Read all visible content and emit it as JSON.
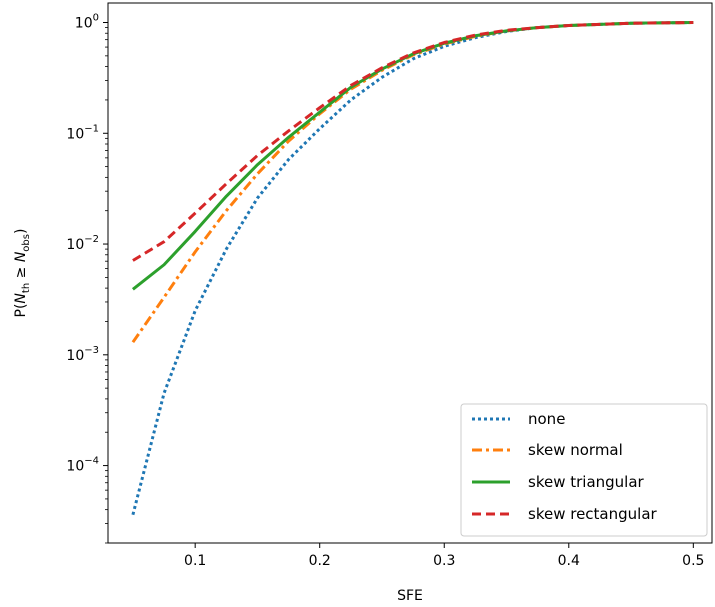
{
  "chart_data": {
    "type": "line",
    "xlabel": "SFE",
    "ylabel_prefix": "P(",
    "ylabel_n1": "N",
    "ylabel_s1": "th",
    "ylabel_ge": " ≥ ",
    "ylabel_n2": "N",
    "ylabel_s2": "obs",
    "ylabel_suffix": ")",
    "y_scale": "log",
    "xlim": [
      0.03,
      0.515
    ],
    "ylim": [
      2e-05,
      1.5
    ],
    "grid": false,
    "legend_position": "lower-right",
    "x_ticks": [
      "0.1",
      "0.2",
      "0.3",
      "0.4",
      "0.5"
    ],
    "y_ticks": [
      {
        "base": "10",
        "exp": "0"
      },
      {
        "base": "10",
        "exp": "−1"
      },
      {
        "base": "10",
        "exp": "−2"
      },
      {
        "base": "10",
        "exp": "−3"
      },
      {
        "base": "10",
        "exp": "−4"
      }
    ],
    "x": [
      0.05,
      0.075,
      0.1,
      0.125,
      0.15,
      0.175,
      0.2,
      0.225,
      0.25,
      0.275,
      0.3,
      0.325,
      0.35,
      0.375,
      0.4,
      0.45,
      0.5
    ],
    "series": [
      {
        "name": "none",
        "color": "#1f77b4",
        "dash": "dotted",
        "values": [
          3.6e-05,
          0.00045,
          0.0025,
          0.009,
          0.026,
          0.058,
          0.11,
          0.2,
          0.32,
          0.47,
          0.61,
          0.73,
          0.83,
          0.9,
          0.94,
          0.985,
          1.0
        ]
      },
      {
        "name": "skew normal",
        "color": "#ff7f0e",
        "dash": "dashdot",
        "values": [
          0.0013,
          0.0033,
          0.0085,
          0.02,
          0.043,
          0.085,
          0.15,
          0.25,
          0.37,
          0.51,
          0.64,
          0.75,
          0.84,
          0.9,
          0.94,
          0.985,
          1.0
        ]
      },
      {
        "name": "skew triangular",
        "color": "#2ca02c",
        "dash": "solid",
        "values": [
          0.0039,
          0.0065,
          0.013,
          0.027,
          0.052,
          0.092,
          0.155,
          0.26,
          0.38,
          0.52,
          0.65,
          0.76,
          0.84,
          0.9,
          0.94,
          0.985,
          1.0
        ]
      },
      {
        "name": "skew rectangular",
        "color": "#d62728",
        "dash": "dashed",
        "values": [
          0.0071,
          0.0105,
          0.019,
          0.035,
          0.063,
          0.105,
          0.17,
          0.27,
          0.39,
          0.53,
          0.66,
          0.77,
          0.85,
          0.9,
          0.94,
          0.985,
          1.0
        ]
      }
    ]
  }
}
